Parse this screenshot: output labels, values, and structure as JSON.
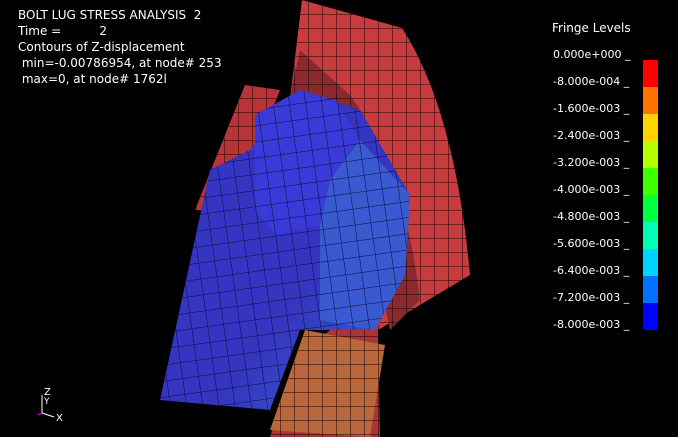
{
  "header": {
    "title": "BOLT LUG STRESS ANALYSIS  2",
    "time_line": "Time =          2",
    "contour_line": "Contours of Z-displacement",
    "min_line": " min=-0.00786954, at node# 253",
    "max_line": " max=0, at node# 1762l"
  },
  "legend": {
    "title": "Fringe Levels",
    "levels": [
      "0.000e+000 _",
      "-8.000e-004 _",
      "-1.600e-003 _",
      "-2.400e-003 _",
      "-3.200e-003 _",
      "-4.000e-003 _",
      "-4.800e-003 _",
      "-5.600e-003 _",
      "-6.400e-003 _",
      "-7.200e-003 _",
      "-8.000e-003 _"
    ],
    "colors": [
      "#ff0000",
      "#ff7200",
      "#ffd200",
      "#b4ff00",
      "#3cff00",
      "#00ff3c",
      "#00ffb4",
      "#00d2ff",
      "#0072ff",
      "#0000ff"
    ]
  },
  "axes": {
    "z_label": "Z",
    "y_label": "Y",
    "x_label": "X"
  }
}
